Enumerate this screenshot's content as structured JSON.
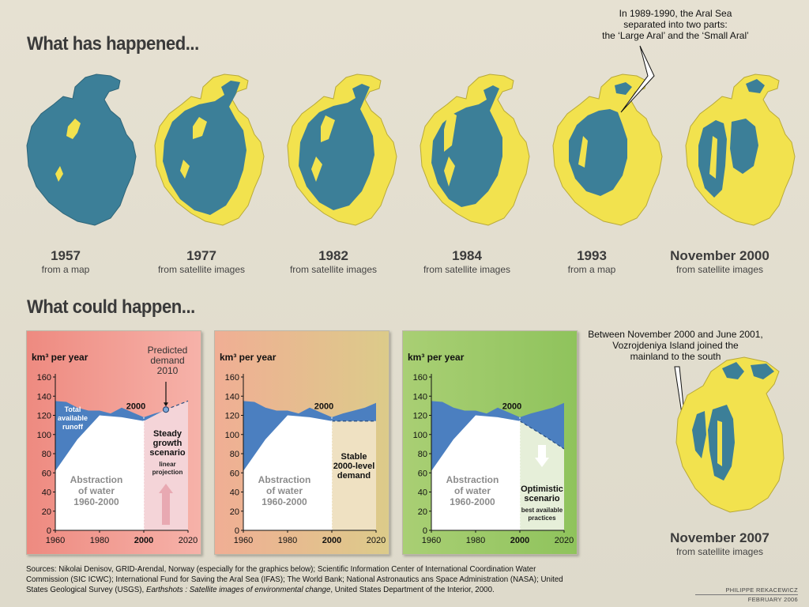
{
  "headings": {
    "past": "What has happened...",
    "future": "What could happen..."
  },
  "maps": [
    {
      "year": "1957",
      "source": "from a map"
    },
    {
      "year": "1977",
      "source": "from satellite images"
    },
    {
      "year": "1982",
      "source": "from satellite images"
    },
    {
      "year": "1984",
      "source": "from satellite images"
    },
    {
      "year": "1993",
      "source": "from a map"
    },
    {
      "year": "November 2000",
      "source": "from satellite images"
    }
  ],
  "map_2007": {
    "year": "November 2007",
    "source": "from satellite images"
  },
  "notes": {
    "split": [
      "In 1989-1990, the Aral Sea",
      "separated into two parts:",
      "the ‘Large Aral’ and the ‘Small Aral’"
    ],
    "island": [
      "Between November 2000 and June 2001,",
      "Vozrojdeniya Island joined the",
      "mainland to the south"
    ]
  },
  "colors": {
    "water": "#3c7f98",
    "seabed": "#f2e24e",
    "runoff": "#4b7fc0",
    "panel1": "#ef8f86",
    "panel2": "#e9b98f",
    "panel3": "#92c266"
  },
  "chart_data": [
    {
      "type": "area",
      "ylabel": "km³ per year",
      "ylim": [
        0,
        160
      ],
      "yticks": [
        "160",
        "140",
        "120",
        "100",
        "80",
        "60",
        "40",
        "20",
        "0"
      ],
      "xticks": [
        "1960",
        "1980",
        "2000",
        "2020"
      ],
      "marker_label": "2000",
      "runoff": {
        "x": [
          1960,
          1965,
          1970,
          1975,
          1980,
          1985,
          1990,
          1995,
          2000,
          2005,
          2010,
          2015,
          2020
        ],
        "y": [
          135,
          134,
          128,
          125,
          125,
          122,
          128,
          123,
          118,
          122,
          125,
          130,
          135
        ]
      },
      "abstraction": {
        "x": [
          1960,
          1970,
          1980,
          1990,
          2000,
          2010
        ],
        "y": [
          62,
          95,
          120,
          118,
          114,
          126
        ]
      },
      "projection": {
        "x": [
          2010,
          2020
        ],
        "y": [
          126,
          135
        ]
      },
      "labels": {
        "runoff": [
          "Total",
          "available",
          "runoff"
        ],
        "abstraction": [
          "Abstraction",
          "of water",
          "1960-2000"
        ],
        "scenario": [
          "Steady",
          "growth",
          "scenario"
        ],
        "scenario_note": [
          "linear",
          "projection"
        ],
        "predicted": [
          "Predicted",
          "demand",
          "2010"
        ]
      }
    },
    {
      "type": "area",
      "ylabel": "km³ per year",
      "ylim": [
        0,
        160
      ],
      "yticks": [
        "160",
        "140",
        "120",
        "100",
        "80",
        "60",
        "40",
        "20",
        "0"
      ],
      "xticks": [
        "1960",
        "1980",
        "2000",
        "2020"
      ],
      "marker_label": "2000",
      "runoff": {
        "x": [
          1960,
          1965,
          1970,
          1975,
          1980,
          1985,
          1990,
          1995,
          2000,
          2005,
          2010,
          2015,
          2020
        ],
        "y": [
          135,
          134,
          128,
          125,
          125,
          122,
          128,
          123,
          118,
          122,
          125,
          128,
          133
        ]
      },
      "abstraction": {
        "x": [
          1960,
          1970,
          1980,
          1990,
          2000
        ],
        "y": [
          62,
          95,
          120,
          118,
          114
        ]
      },
      "projection": {
        "x": [
          2000,
          2020
        ],
        "y": [
          114,
          114
        ]
      },
      "labels": {
        "abstraction": [
          "Abstraction",
          "of water",
          "1960-2000"
        ],
        "scenario": [
          "Stable",
          "2000-level",
          "demand"
        ]
      }
    },
    {
      "type": "area",
      "ylabel": "km³ per year",
      "ylim": [
        0,
        160
      ],
      "yticks": [
        "160",
        "140",
        "120",
        "100",
        "80",
        "60",
        "40",
        "20",
        "0"
      ],
      "xticks": [
        "1960",
        "1980",
        "2000",
        "2020"
      ],
      "marker_label": "2000",
      "runoff": {
        "x": [
          1960,
          1965,
          1970,
          1975,
          1980,
          1985,
          1990,
          1995,
          2000,
          2005,
          2010,
          2015,
          2020
        ],
        "y": [
          135,
          134,
          128,
          125,
          125,
          122,
          128,
          123,
          118,
          122,
          125,
          128,
          133
        ]
      },
      "abstraction": {
        "x": [
          1960,
          1970,
          1980,
          1990,
          2000
        ],
        "y": [
          62,
          95,
          120,
          118,
          114
        ]
      },
      "projection": {
        "x": [
          2000,
          2010,
          2020
        ],
        "y": [
          114,
          100,
          85
        ]
      },
      "labels": {
        "abstraction": [
          "Abstraction",
          "of water",
          "1960-2000"
        ],
        "scenario": [
          "Optimistic",
          "scenario"
        ],
        "scenario_note": [
          "best available",
          "practices"
        ]
      }
    }
  ],
  "sources": {
    "line1": "Sources: Nikolai Denisov, GRID-Arendal, Norway (especially for the graphics below); Scientific Information Center of International Coordination Water",
    "line2": "Commission (SIC ICWC); International Fund for Saving the Aral Sea (IFAS); The World Bank; National Astronautics ans Space Administration (NASA); United",
    "line3_a": "States Geological Survey (USGS), ",
    "line3_b": "Earthshots : Satellite images of environmental change",
    "line3_c": ", United States Department of the Interior, 2000."
  },
  "credit": {
    "author": "PHILIPPE REKACEWICZ",
    "date": "FEBRUARY 2006"
  }
}
